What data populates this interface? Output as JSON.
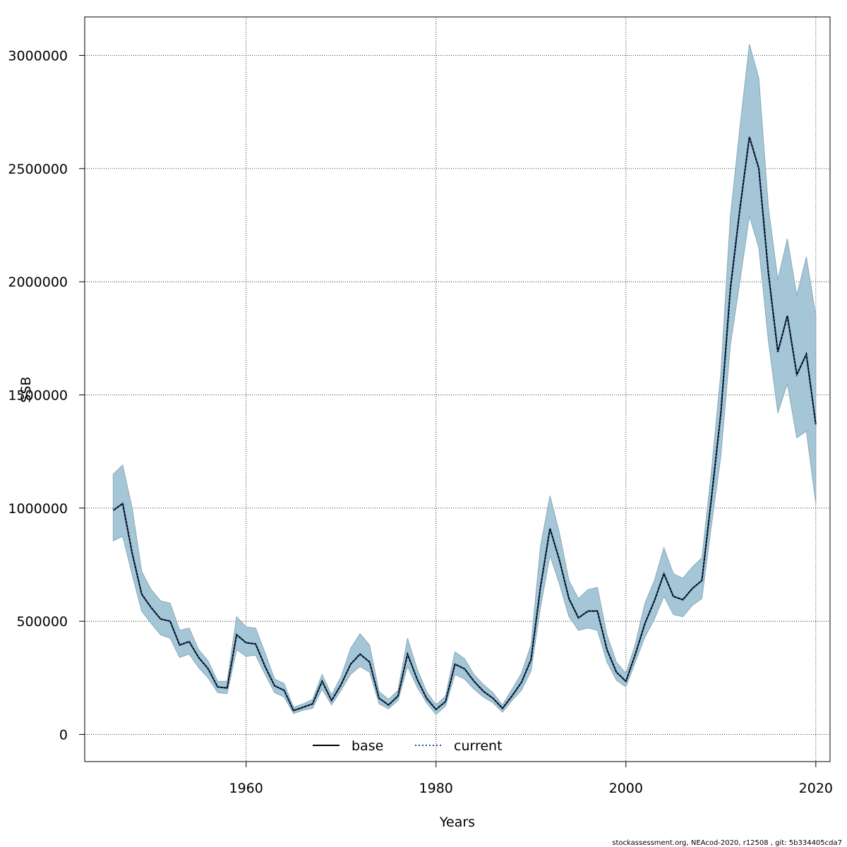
{
  "chart_data": {
    "type": "line",
    "title": "",
    "xlabel": "Years",
    "ylabel": "SSB",
    "xlim": [
      1943,
      2021.5
    ],
    "ylim": [
      -120000,
      3170000
    ],
    "x_ticks": [
      1960,
      1980,
      2000,
      2020
    ],
    "x_tick_labels": [
      "1960",
      "1980",
      "2000",
      "2020"
    ],
    "y_ticks": [
      0,
      500000,
      1000000,
      1500000,
      2000000,
      2500000,
      3000000
    ],
    "y_tick_labels": [
      "0",
      "500000",
      "1000000",
      "1500000",
      "2000000",
      "2500000",
      "3000000"
    ],
    "grid": true,
    "x": [
      1946,
      1947,
      1948,
      1949,
      1950,
      1951,
      1952,
      1953,
      1954,
      1955,
      1956,
      1957,
      1958,
      1959,
      1960,
      1961,
      1962,
      1963,
      1964,
      1965,
      1966,
      1967,
      1968,
      1969,
      1970,
      1971,
      1972,
      1973,
      1974,
      1975,
      1976,
      1977,
      1978,
      1979,
      1980,
      1981,
      1982,
      1983,
      1984,
      1985,
      1986,
      1987,
      1988,
      1989,
      1990,
      1991,
      1992,
      1993,
      1994,
      1995,
      1996,
      1997,
      1998,
      1999,
      2000,
      2001,
      2002,
      2003,
      2004,
      2005,
      2006,
      2007,
      2008,
      2009,
      2010,
      2011,
      2012,
      2013,
      2014,
      2015,
      2016,
      2017,
      2018,
      2019,
      2020
    ],
    "series": [
      {
        "name": "base",
        "style": "solid",
        "color": "#000000",
        "values": [
          990000,
          1020000,
          800000,
          620000,
          560000,
          510000,
          500000,
          395000,
          410000,
          340000,
          290000,
          210000,
          205000,
          440000,
          405000,
          400000,
          300000,
          215000,
          195000,
          105000,
          120000,
          135000,
          235000,
          150000,
          220000,
          310000,
          355000,
          320000,
          160000,
          130000,
          170000,
          355000,
          245000,
          160000,
          110000,
          145000,
          310000,
          290000,
          235000,
          190000,
          160000,
          115000,
          170000,
          230000,
          330000,
          650000,
          910000,
          770000,
          600000,
          515000,
          545000,
          545000,
          375000,
          275000,
          235000,
          355000,
          490000,
          590000,
          710000,
          610000,
          595000,
          645000,
          680000,
          1040000,
          1420000,
          1970000,
          2320000,
          2640000,
          2500000,
          2040000,
          1690000,
          1850000,
          1590000,
          1680000,
          1370000
        ]
      },
      {
        "name": "current",
        "style": "dotted",
        "color": "#1f4f8f",
        "values": [
          990000,
          1020000,
          800000,
          620000,
          560000,
          510000,
          500000,
          395000,
          410000,
          340000,
          290000,
          210000,
          205000,
          440000,
          405000,
          400000,
          300000,
          215000,
          195000,
          105000,
          120000,
          135000,
          235000,
          150000,
          220000,
          310000,
          355000,
          320000,
          160000,
          130000,
          170000,
          355000,
          245000,
          160000,
          110000,
          145000,
          310000,
          290000,
          235000,
          190000,
          160000,
          115000,
          170000,
          230000,
          330000,
          650000,
          910000,
          770000,
          600000,
          515000,
          545000,
          545000,
          375000,
          275000,
          235000,
          355000,
          490000,
          590000,
          710000,
          610000,
          595000,
          645000,
          680000,
          1040000,
          1420000,
          1970000,
          2320000,
          2640000,
          2500000,
          2040000,
          1690000,
          1850000,
          1590000,
          1680000,
          1370000
        ]
      }
    ],
    "confidence_band": {
      "color": "#a4c6d6",
      "lower": [
        855000,
        875000,
        705000,
        545000,
        490000,
        440000,
        425000,
        340000,
        355000,
        295000,
        250000,
        185000,
        180000,
        375000,
        345000,
        350000,
        265000,
        185000,
        165000,
        92000,
        107000,
        115000,
        200000,
        130000,
        195000,
        265000,
        300000,
        275000,
        135000,
        113000,
        150000,
        300000,
        210000,
        140000,
        88000,
        125000,
        265000,
        245000,
        200000,
        165000,
        140000,
        98000,
        150000,
        195000,
        280000,
        560000,
        790000,
        665000,
        520000,
        460000,
        470000,
        460000,
        320000,
        240000,
        210000,
        320000,
        430000,
        510000,
        610000,
        530000,
        520000,
        570000,
        600000,
        920000,
        1230000,
        1720000,
        2000000,
        2290000,
        2150000,
        1740000,
        1420000,
        1550000,
        1310000,
        1340000,
        1020000
      ],
      "upper": [
        1150000,
        1190000,
        1000000,
        720000,
        640000,
        590000,
        580000,
        460000,
        470000,
        375000,
        325000,
        235000,
        235000,
        520000,
        475000,
        470000,
        360000,
        245000,
        225000,
        120000,
        135000,
        155000,
        265000,
        175000,
        255000,
        380000,
        445000,
        395000,
        190000,
        155000,
        195000,
        425000,
        290000,
        190000,
        130000,
        170000,
        365000,
        335000,
        265000,
        220000,
        185000,
        130000,
        200000,
        270000,
        395000,
        830000,
        1055000,
        890000,
        680000,
        600000,
        640000,
        650000,
        440000,
        320000,
        270000,
        400000,
        580000,
        680000,
        825000,
        710000,
        690000,
        740000,
        780000,
        1160000,
        1600000,
        2290000,
        2680000,
        3050000,
        2900000,
        2330000,
        2010000,
        2190000,
        1940000,
        2110000,
        1850000
      ]
    },
    "legend": {
      "position": "bottom",
      "entries": [
        {
          "label": "base",
          "style": "solid"
        },
        {
          "label": "current",
          "style": "dotted"
        }
      ]
    }
  },
  "footer": {
    "text": "stockassessment.org, NEAcod-2020, r12508 , git: 5b334405cda7"
  }
}
